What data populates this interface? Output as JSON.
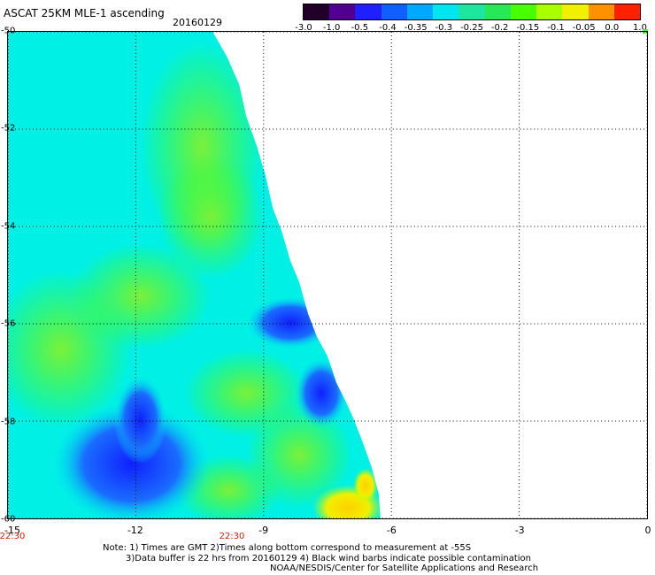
{
  "header": {
    "title": "ASCAT 25KM MLE-1 ascending",
    "date": "20160129"
  },
  "colorbar": {
    "labels": [
      "-3.0",
      "-1.0",
      "-0.5",
      "-0.4",
      "-0.35",
      "-0.3",
      "-0.25",
      "-0.2",
      "-0.15",
      "-0.1",
      "-0.05",
      "0.0",
      "1.0"
    ],
    "colors": [
      "#200028",
      "#500090",
      "#2020ff",
      "#1060ff",
      "#00a8ff",
      "#00e6f0",
      "#1ee6a0",
      "#28e858",
      "#48ff00",
      "#a8ff00",
      "#f0f000",
      "#ff9000",
      "#ff2000"
    ]
  },
  "map": {
    "y_ticks": [
      "-50",
      "-52",
      "-54",
      "-56",
      "-58",
      "-60"
    ],
    "x_ticks": [
      "-15",
      "-12",
      "-9",
      "-6",
      "-3",
      "0"
    ],
    "time_labels": [
      "22:30",
      "22:30"
    ]
  },
  "notes": {
    "line1": "Note: 1) Times are GMT 2)Times along bottom correspond to measurement at -55S",
    "line2": "3)Data buffer is 22 hrs from 20160129 4) Black wind barbs indicate possible contamination",
    "line3": "NOAA/NESDIS/Center for Satellite Applications and Research"
  }
}
